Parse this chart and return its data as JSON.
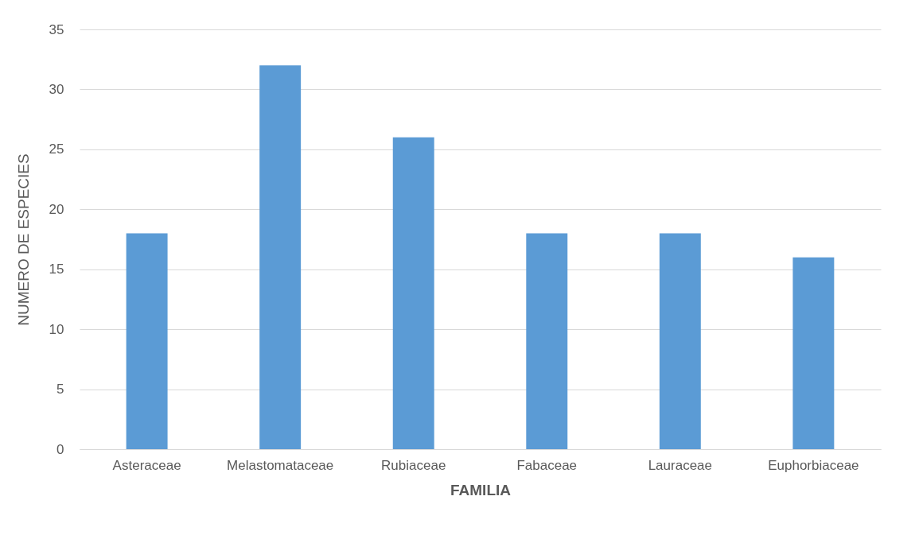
{
  "chart_data": {
    "type": "bar",
    "xlabel": "FAMILIA",
    "ylabel": "NUMERO DE ESPECIES",
    "categories": [
      "Asteraceae",
      "Melastomataceae",
      "Rubiaceae",
      "Fabaceae",
      "Lauraceae",
      "Euphorbiaceae"
    ],
    "values": [
      18,
      32,
      26,
      18,
      18,
      16
    ],
    "color": "#5b9bd5",
    "ylim": [
      0,
      35
    ],
    "yticks": [
      0,
      5,
      10,
      15,
      20,
      25,
      30,
      35
    ],
    "grid": "y"
  }
}
